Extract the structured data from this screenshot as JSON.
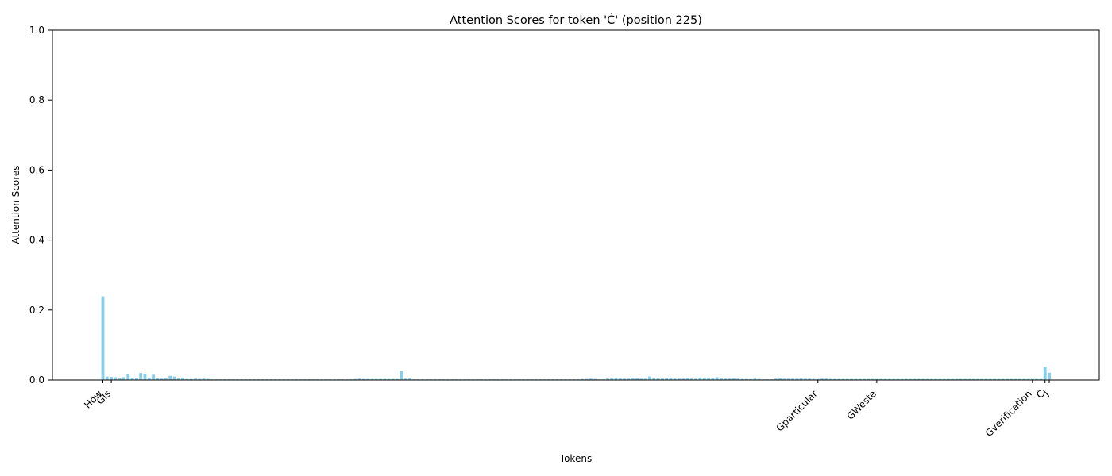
{
  "chart_data": {
    "type": "bar",
    "title": "Attention Scores for token 'Ċ' (position 225)",
    "xlabel": "Tokens",
    "ylabel": "Attention Scores",
    "ylim": [
      0,
      1
    ],
    "yticks": [
      0.0,
      0.2,
      0.4,
      0.6,
      0.8,
      1.0
    ],
    "ytick_labels": [
      "0.0",
      "0.2",
      "0.4",
      "0.6",
      "0.8",
      "1.0"
    ],
    "bar_color": "#87ceeb",
    "grid": false,
    "x_tick_label_rotation_deg": 45,
    "bar_count": 226,
    "visible_x_tick_labels_sample": [
      "How",
      "GIs",
      "Gparticular",
      "GWeste",
      "Gverification",
      "Ċ",
      "J"
    ],
    "series": [
      {
        "values": [
          0.239,
          0.01,
          0.009,
          0.008,
          0.006,
          0.008,
          0.016,
          0.006,
          0.005,
          0.02,
          0.017,
          0.007,
          0.015,
          0.005,
          0.004,
          0.006,
          0.012,
          0.01,
          0.005,
          0.007,
          0.003,
          0.003,
          0.004,
          0.003,
          0.004,
          0.003,
          0.002,
          0.002,
          0.002,
          0.002,
          0.002,
          0.002,
          0.002,
          0.002,
          0.002,
          0.002,
          0.002,
          0.002,
          0.002,
          0.002,
          0.002,
          0.002,
          0.002,
          0.002,
          0.002,
          0.002,
          0.002,
          0.002,
          0.002,
          0.002,
          0.002,
          0.002,
          0.002,
          0.002,
          0.002,
          0.002,
          0.002,
          0.002,
          0.002,
          0.002,
          0.003,
          0.004,
          0.003,
          0.003,
          0.003,
          0.003,
          0.003,
          0.003,
          0.003,
          0.003,
          0.003,
          0.025,
          0.004,
          0.006,
          0.002,
          0.002,
          0.002,
          0.002,
          0.002,
          0.002,
          0.002,
          0.002,
          0.002,
          0.002,
          0.002,
          0.002,
          0.002,
          0.002,
          0.002,
          0.002,
          0.002,
          0.002,
          0.002,
          0.002,
          0.002,
          0.002,
          0.002,
          0.002,
          0.002,
          0.002,
          0.002,
          0.002,
          0.002,
          0.002,
          0.002,
          0.002,
          0.002,
          0.002,
          0.002,
          0.002,
          0.002,
          0.002,
          0.002,
          0.002,
          0.003,
          0.003,
          0.004,
          0.003,
          0.002,
          0.002,
          0.004,
          0.005,
          0.006,
          0.005,
          0.004,
          0.004,
          0.006,
          0.005,
          0.004,
          0.004,
          0.01,
          0.006,
          0.005,
          0.005,
          0.005,
          0.007,
          0.004,
          0.004,
          0.004,
          0.006,
          0.004,
          0.004,
          0.007,
          0.006,
          0.007,
          0.005,
          0.008,
          0.005,
          0.004,
          0.004,
          0.005,
          0.004,
          0.003,
          0.003,
          0.003,
          0.004,
          0.003,
          0.002,
          0.002,
          0.002,
          0.004,
          0.005,
          0.004,
          0.004,
          0.004,
          0.004,
          0.005,
          0.004,
          0.004,
          0.003,
          0.003,
          0.004,
          0.004,
          0.003,
          0.003,
          0.003,
          0.003,
          0.003,
          0.003,
          0.003,
          0.003,
          0.003,
          0.003,
          0.003,
          0.003,
          0.003,
          0.003,
          0.003,
          0.003,
          0.003,
          0.003,
          0.003,
          0.003,
          0.003,
          0.003,
          0.003,
          0.003,
          0.003,
          0.003,
          0.003,
          0.003,
          0.003,
          0.003,
          0.003,
          0.003,
          0.003,
          0.003,
          0.003,
          0.003,
          0.003,
          0.003,
          0.003,
          0.003,
          0.003,
          0.003,
          0.003,
          0.003,
          0.003,
          0.003,
          0.003,
          0.003,
          0.003,
          0.003,
          0.003,
          0.038,
          0.021
        ]
      }
    ]
  }
}
